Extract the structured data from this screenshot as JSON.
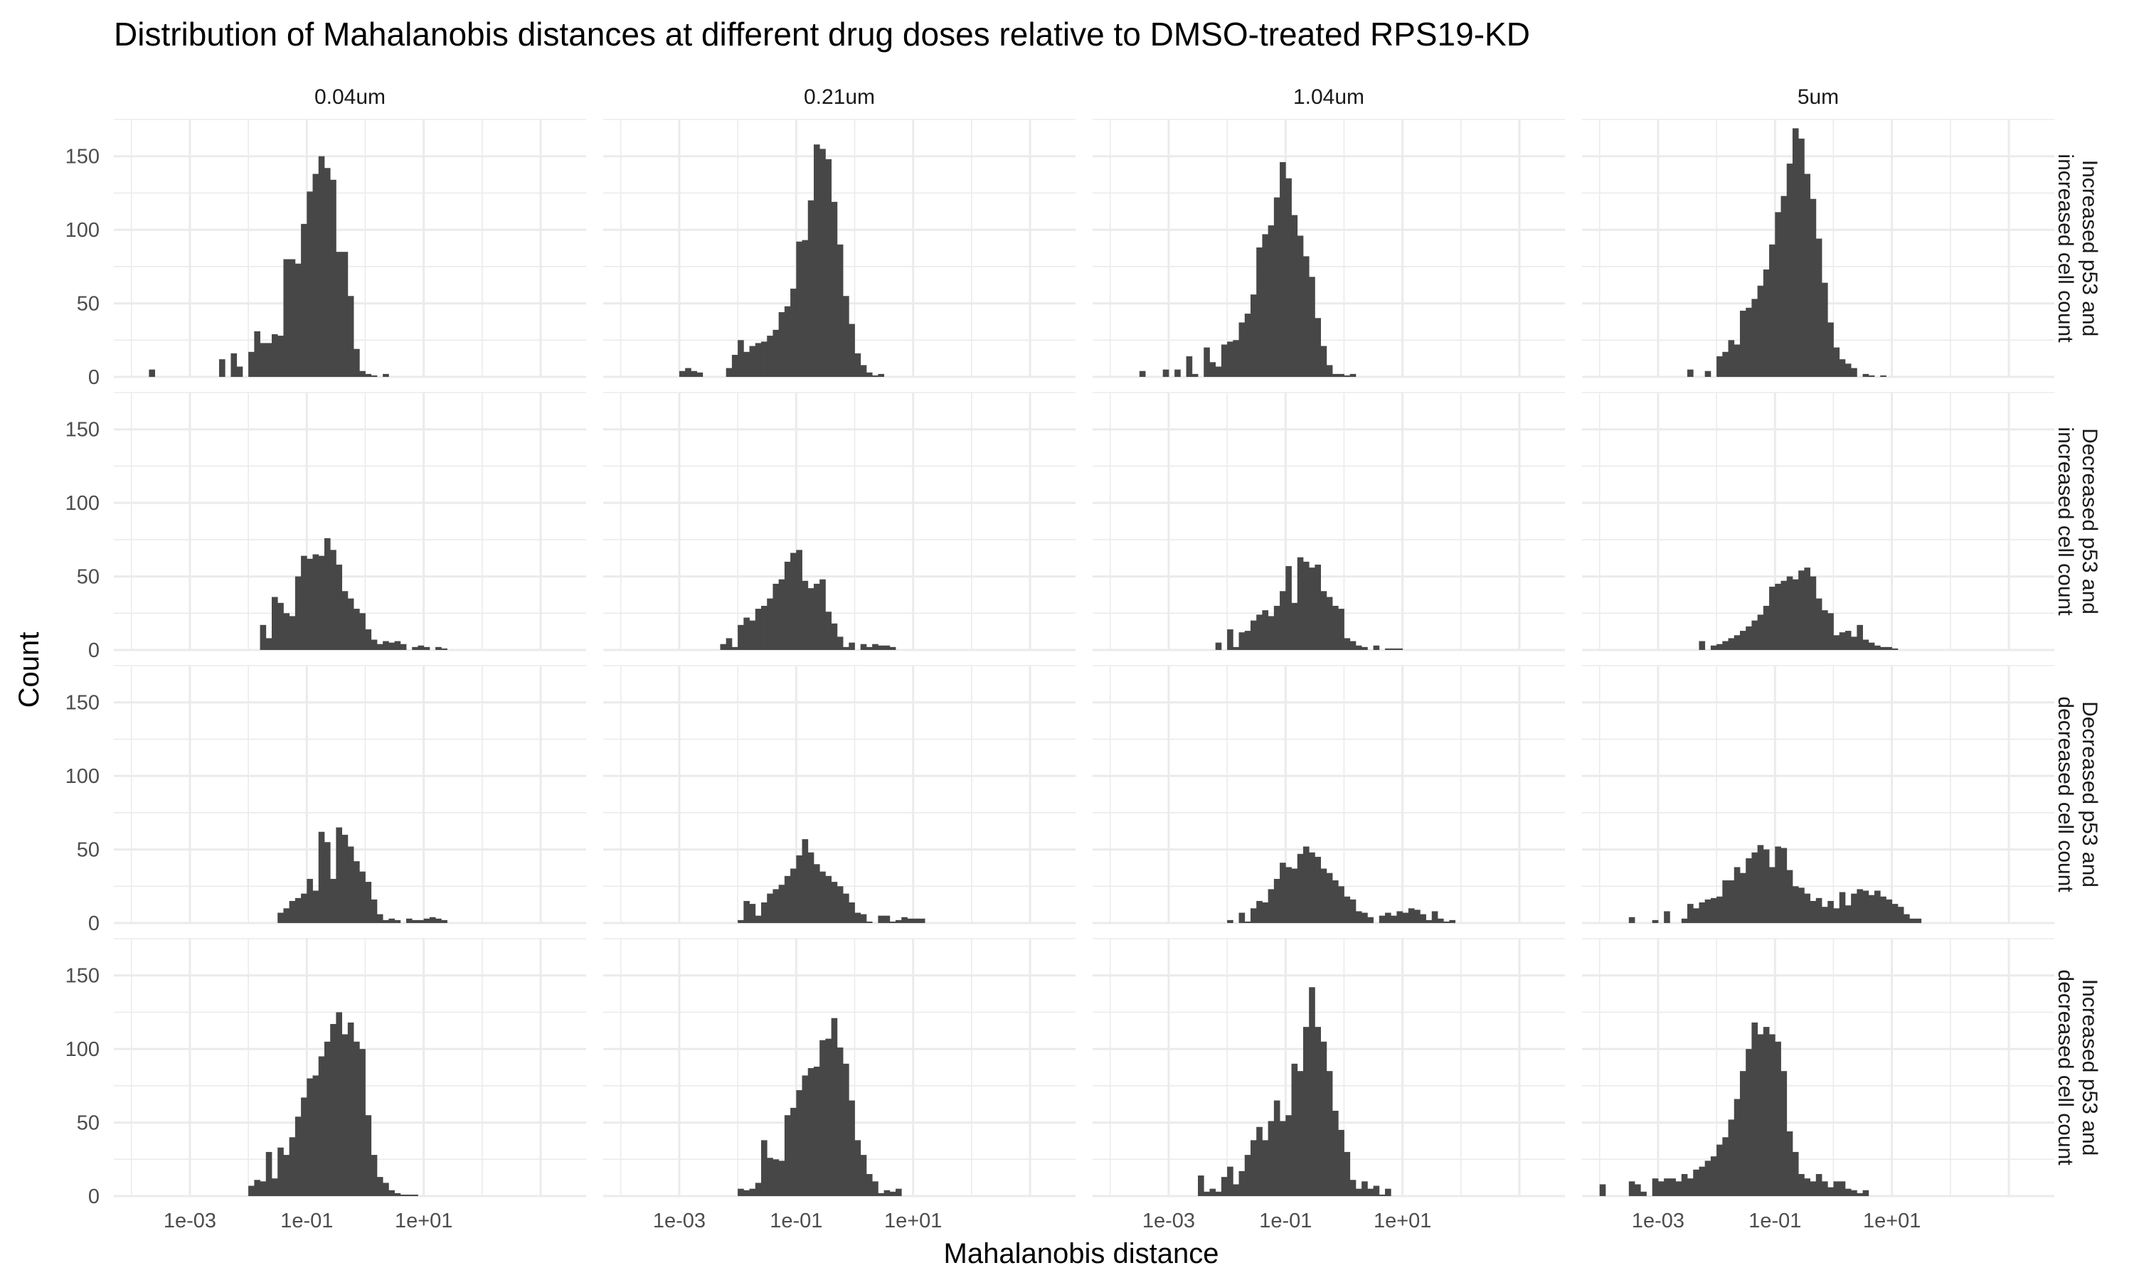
{
  "chart_data": {
    "type": "bar",
    "subtype": "faceted-histogram",
    "title": "Distribution of Mahalanobis distances at different drug doses relative to DMSO-treated RPS19-KD",
    "xlabel": "Mahalanobis distance",
    "ylabel": "Count",
    "x_scale": "log10",
    "xlim": [
      5e-05,
      6000
    ],
    "ylim": [
      0,
      175
    ],
    "x_ticks": [
      0.001,
      0.1,
      10
    ],
    "x_tick_labels": [
      "1e-03",
      "1e-01",
      "1e+01"
    ],
    "y_ticks": [
      0,
      50,
      100,
      150
    ],
    "y_tick_labels": [
      "0",
      "50",
      "100",
      "150"
    ],
    "grid": true,
    "bin_width_log10": 0.1,
    "facet_columns": [
      "0.04um",
      "0.21um",
      "1.04um",
      "5um"
    ],
    "facet_rows": [
      "Increased p53 and increased cell count",
      "Decreased p53 and increased cell count",
      "Decreased p53 and decreased cell count",
      "Increased p53 and decreased cell count"
    ],
    "panels": [
      {
        "row": 0,
        "col": 0,
        "bin_start_log10": -3.7,
        "counts": [
          5,
          0,
          0,
          0,
          0,
          0,
          0,
          0,
          0,
          0,
          0,
          0,
          12,
          0,
          16,
          7,
          0,
          17,
          31,
          23,
          23,
          29,
          28,
          80,
          80,
          77,
          104,
          126,
          138,
          150,
          142,
          134,
          85,
          85,
          55,
          19,
          4,
          2,
          1,
          0,
          2
        ]
      },
      {
        "row": 0,
        "col": 1,
        "bin_start_log10": -3.0,
        "counts": [
          4,
          6,
          4,
          3,
          0,
          0,
          0,
          0,
          6,
          15,
          25,
          17,
          21,
          23,
          24,
          28,
          32,
          44,
          48,
          60,
          92,
          93,
          120,
          158,
          155,
          148,
          119,
          90,
          55,
          36,
          16,
          8,
          3,
          1,
          2
        ]
      },
      {
        "row": 0,
        "col": 2,
        "bin_start_log10": -3.5,
        "counts": [
          4,
          0,
          0,
          0,
          5,
          0,
          5,
          0,
          14,
          2,
          0,
          20,
          10,
          7,
          22,
          24,
          25,
          37,
          43,
          56,
          88,
          97,
          103,
          122,
          146,
          135,
          110,
          96,
          82,
          68,
          40,
          21,
          8,
          2,
          2,
          1,
          2
        ]
      },
      {
        "row": 0,
        "col": 3,
        "bin_start_log10": -2.5,
        "counts": [
          5,
          0,
          0,
          4,
          0,
          14,
          17,
          25,
          22,
          45,
          47,
          53,
          62,
          73,
          90,
          112,
          123,
          145,
          169,
          162,
          138,
          121,
          94,
          64,
          37,
          20,
          12,
          9,
          6,
          0,
          2,
          1,
          0,
          1
        ]
      },
      {
        "row": 1,
        "col": 0,
        "bin_start_log10": -1.8,
        "counts": [
          17,
          8,
          36,
          32,
          25,
          23,
          50,
          64,
          62,
          65,
          64,
          76,
          68,
          58,
          40,
          35,
          28,
          25,
          14,
          7,
          4,
          6,
          5,
          6,
          4,
          0,
          2,
          3,
          2,
          0,
          2,
          1
        ]
      },
      {
        "row": 1,
        "col": 1,
        "bin_start_log10": -2.3,
        "counts": [
          4,
          8,
          2,
          17,
          22,
          20,
          28,
          30,
          35,
          45,
          48,
          60,
          66,
          68,
          47,
          42,
          45,
          48,
          26,
          18,
          9,
          2,
          5,
          0,
          4,
          2,
          4,
          3,
          3,
          2
        ]
      },
      {
        "row": 1,
        "col": 2,
        "bin_start_log10": -2.2,
        "counts": [
          5,
          0,
          14,
          2,
          12,
          13,
          20,
          24,
          27,
          23,
          30,
          40,
          57,
          32,
          63,
          60,
          56,
          58,
          40,
          36,
          30,
          28,
          8,
          6,
          3,
          2,
          0,
          3,
          0,
          1,
          1,
          1
        ]
      },
      {
        "row": 1,
        "col": 3,
        "bin_start_log10": -2.3,
        "counts": [
          6,
          0,
          3,
          4,
          6,
          8,
          10,
          13,
          16,
          20,
          24,
          30,
          43,
          45,
          47,
          50,
          48,
          54,
          56,
          50,
          35,
          27,
          25,
          10,
          12,
          13,
          9,
          17,
          7,
          5,
          3,
          2,
          2,
          1
        ]
      },
      {
        "row": 2,
        "col": 0,
        "bin_start_log10": -1.5,
        "counts": [
          7,
          10,
          15,
          17,
          20,
          30,
          22,
          62,
          55,
          30,
          65,
          60,
          52,
          42,
          35,
          28,
          16,
          6,
          2,
          3,
          2,
          0,
          3,
          2,
          2,
          3,
          4,
          3,
          2
        ]
      },
      {
        "row": 2,
        "col": 1,
        "bin_start_log10": -2.0,
        "counts": [
          2,
          15,
          13,
          5,
          14,
          20,
          23,
          26,
          32,
          37,
          46,
          57,
          48,
          40,
          35,
          32,
          28,
          25,
          20,
          14,
          7,
          6,
          1,
          0,
          5,
          5,
          1,
          2,
          4,
          3,
          3,
          3
        ]
      },
      {
        "row": 2,
        "col": 2,
        "bin_start_log10": -2.0,
        "counts": [
          2,
          0,
          7,
          1,
          10,
          15,
          14,
          23,
          30,
          41,
          38,
          37,
          47,
          52,
          48,
          45,
          37,
          34,
          29,
          25,
          18,
          16,
          8,
          7,
          4,
          0,
          5,
          7,
          5,
          8,
          7,
          10,
          9,
          6,
          2,
          8,
          3,
          1,
          2
        ]
      },
      {
        "row": 2,
        "col": 3,
        "bin_start_log10": -3.5,
        "counts": [
          4,
          0,
          0,
          0,
          2,
          0,
          8,
          0,
          0,
          3,
          13,
          10,
          14,
          16,
          17,
          18,
          29,
          29,
          38,
          34,
          44,
          48,
          53,
          50,
          38,
          52,
          51,
          36,
          25,
          24,
          20,
          15,
          17,
          11,
          15,
          10,
          21,
          12,
          20,
          23,
          22,
          19,
          22,
          18,
          16,
          13,
          11,
          6,
          3,
          3
        ]
      },
      {
        "row": 3,
        "col": 0,
        "bin_start_log10": -2.0,
        "counts": [
          7,
          11,
          10,
          30,
          12,
          33,
          28,
          40,
          54,
          67,
          80,
          82,
          95,
          105,
          117,
          125,
          110,
          118,
          105,
          100,
          55,
          28,
          13,
          9,
          4,
          2,
          1,
          1,
          1
        ]
      },
      {
        "row": 3,
        "col": 1,
        "bin_start_log10": -2.0,
        "counts": [
          5,
          4,
          5,
          9,
          38,
          26,
          25,
          24,
          55,
          60,
          72,
          82,
          87,
          88,
          106,
          107,
          121,
          101,
          90,
          65,
          38,
          28,
          15,
          10,
          2,
          4,
          3,
          5
        ]
      },
      {
        "row": 3,
        "col": 2,
        "bin_start_log10": -2.5,
        "counts": [
          14,
          3,
          5,
          3,
          13,
          20,
          8,
          17,
          28,
          38,
          47,
          38,
          51,
          65,
          51,
          55,
          90,
          85,
          115,
          142,
          115,
          105,
          85,
          58,
          45,
          30,
          11,
          5,
          10,
          5,
          7,
          1,
          5
        ]
      },
      {
        "row": 3,
        "col": 3,
        "bin_start_log10": -4.0,
        "counts": [
          8,
          0,
          0,
          0,
          0,
          10,
          8,
          3,
          0,
          12,
          10,
          12,
          12,
          10,
          15,
          12,
          18,
          20,
          24,
          27,
          35,
          40,
          52,
          66,
          85,
          100,
          118,
          110,
          115,
          110,
          105,
          85,
          44,
          30,
          15,
          12,
          10,
          15,
          10,
          6,
          10,
          10,
          5,
          4,
          2,
          4
        ]
      }
    ]
  }
}
